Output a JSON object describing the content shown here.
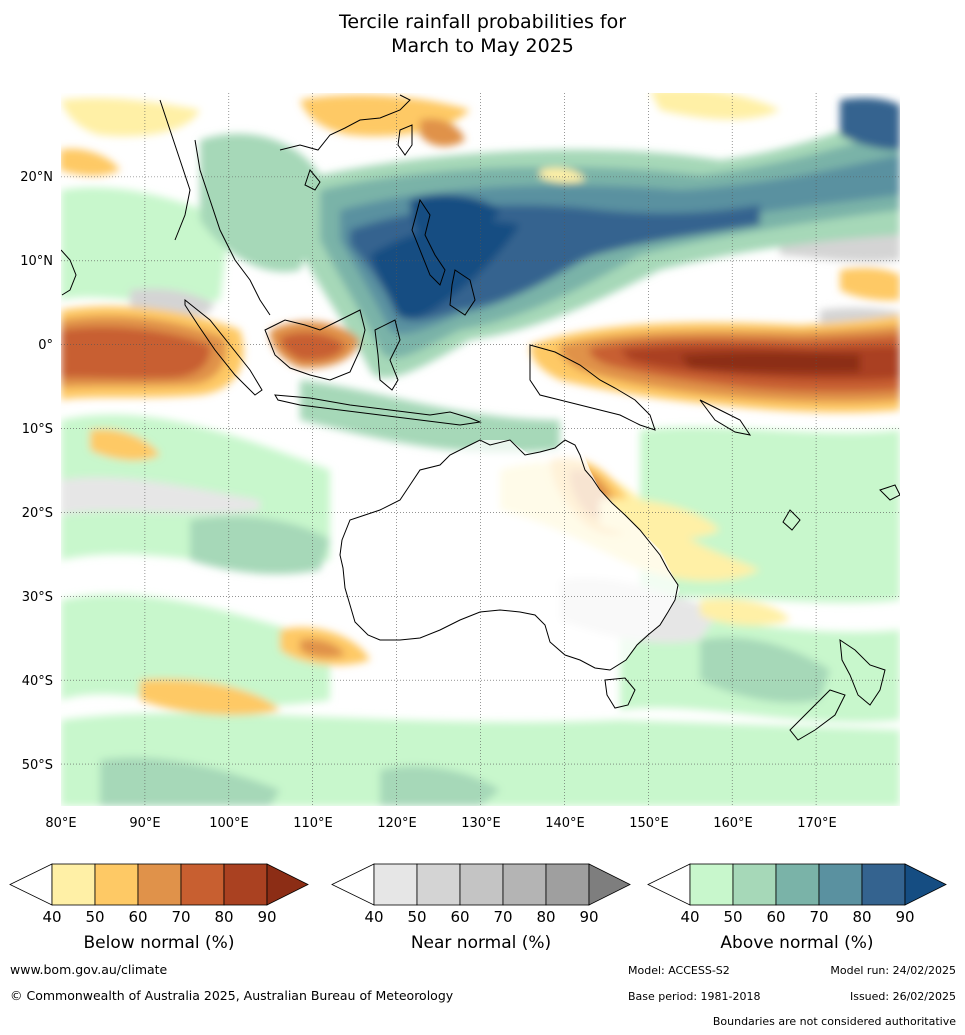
{
  "title": {
    "line1": "Tercile rainfall probabilities for",
    "line2": "March to May 2025"
  },
  "map": {
    "lon_labels": [
      "80°E",
      "90°E",
      "100°E",
      "110°E",
      "120°E",
      "130°E",
      "140°E",
      "150°E",
      "160°E",
      "170°E"
    ],
    "lat_labels": [
      "20°N",
      "10°N",
      "0°",
      "10°S",
      "20°S",
      "30°S",
      "40°S",
      "50°S"
    ],
    "lon_range": [
      80,
      180
    ],
    "lat_range": [
      -55,
      30
    ],
    "gridlines": true
  },
  "colorbars": [
    {
      "title": "Below normal (%)",
      "ticks": [
        "40",
        "50",
        "60",
        "70",
        "80",
        "90"
      ],
      "colors": [
        "#fff0a6",
        "#fec965",
        "#e0924a",
        "#c85f30",
        "#aa4121",
        "#8c2d15"
      ]
    },
    {
      "title": "Near normal (%)",
      "ticks": [
        "40",
        "50",
        "60",
        "70",
        "80",
        "90"
      ],
      "colors": [
        "#e6e6e6",
        "#d4d4d4",
        "#c4c4c4",
        "#b4b4b4",
        "#9f9f9f",
        "#7e7e7e"
      ]
    },
    {
      "title": "Above normal (%)",
      "ticks": [
        "40",
        "50",
        "60",
        "70",
        "80",
        "90"
      ],
      "colors": [
        "#c8f7cc",
        "#a6d8b8",
        "#7ab3a8",
        "#5a91a0",
        "#34638f",
        "#154d82"
      ]
    }
  ],
  "footer": {
    "url": "www.bom.gov.au/climate",
    "copyright": "© Commonwealth of Australia 2025, Australian Bureau of Meteorology",
    "model": "Model: ACCESS-S2",
    "model_run": "Model run: 24/02/2025",
    "base_period": "Base period: 1981-2018",
    "issued": "Issued: 26/02/2025",
    "disclaimer": "Boundaries are not considered authoritative"
  }
}
